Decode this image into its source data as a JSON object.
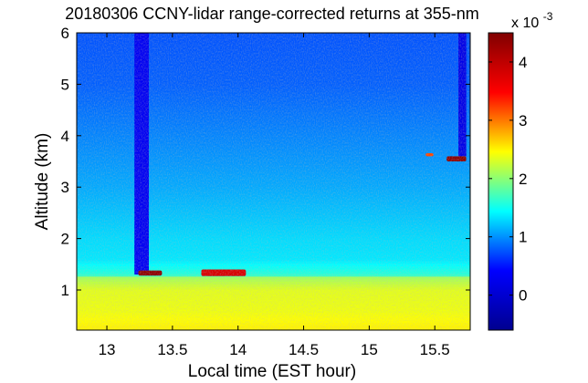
{
  "chart_data": {
    "type": "heatmap",
    "title": "20180306 CCNY-lidar range-corrected returns at 355-nm",
    "xlabel": "Local time (EST hour)",
    "ylabel": "Altitude (km)",
    "xlim": [
      12.77,
      15.77
    ],
    "ylim": [
      0.22,
      6.0
    ],
    "xticks": [
      13,
      13.5,
      14,
      14.5,
      15,
      15.5
    ],
    "xtick_labels": [
      "13",
      "13.5",
      "14",
      "14.5",
      "15",
      "15.5"
    ],
    "yticks": [
      1,
      2,
      3,
      4,
      5,
      6
    ],
    "ytick_labels": [
      "1",
      "2",
      "3",
      "4",
      "5",
      "6"
    ],
    "colorbar": {
      "range": [
        -0.6,
        4.5
      ],
      "ticks": [
        0,
        1,
        2,
        3,
        4
      ],
      "tick_labels": [
        "0",
        "1",
        "2",
        "3",
        "4"
      ],
      "multiplier_base": "x 10",
      "multiplier_exponent": "-3",
      "colormap": "jet",
      "colormap_stops": [
        "#00008f",
        "#0000ff",
        "#00ffff",
        "#ffff00",
        "#ff0000",
        "#800000"
      ]
    },
    "background_profile": [
      {
        "altitude_km": 0.3,
        "value": 2.5
      },
      {
        "altitude_km": 0.6,
        "value": 2.4
      },
      {
        "altitude_km": 1.0,
        "value": 2.35
      },
      {
        "altitude_km": 1.25,
        "value": 2.1
      },
      {
        "altitude_km": 1.3,
        "value": 1.6
      },
      {
        "altitude_km": 1.6,
        "value": 1.35
      },
      {
        "altitude_km": 2.0,
        "value": 1.3
      },
      {
        "altitude_km": 3.0,
        "value": 1.1
      },
      {
        "altitude_km": 4.0,
        "value": 0.95
      },
      {
        "altitude_km": 5.0,
        "value": 0.8
      },
      {
        "altitude_km": 6.0,
        "value": 0.75
      }
    ],
    "features": [
      {
        "name": "low-signal column",
        "time_start": 13.21,
        "time_end": 13.32,
        "alt_bottom": 1.3,
        "alt_top": 6.0,
        "value": 0.3
      },
      {
        "name": "low-signal column",
        "time_start": 15.68,
        "time_end": 15.74,
        "alt_bottom": 3.6,
        "alt_top": 6.0,
        "value": 0.2
      },
      {
        "name": "cloud",
        "time_start": 13.24,
        "time_end": 13.42,
        "alt_bottom": 1.28,
        "alt_top": 1.38,
        "value": 4.4
      },
      {
        "name": "cloud",
        "time_start": 13.72,
        "time_end": 14.06,
        "alt_bottom": 1.27,
        "alt_top": 1.4,
        "value": 3.8
      },
      {
        "name": "cloud",
        "time_start": 15.59,
        "time_end": 15.74,
        "alt_bottom": 3.5,
        "alt_top": 3.6,
        "value": 4.4
      },
      {
        "name": "cloud",
        "time_start": 15.43,
        "time_end": 15.49,
        "alt_bottom": 3.6,
        "alt_top": 3.66,
        "value": 3.2
      }
    ]
  }
}
